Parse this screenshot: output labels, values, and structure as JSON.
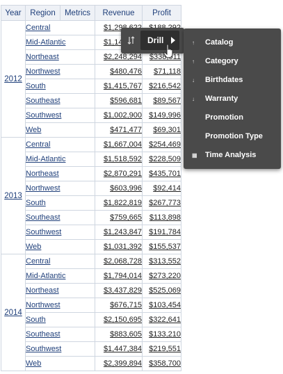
{
  "headers": {
    "year": "Year",
    "region": "Region",
    "metrics": "Metrics",
    "revenue": "Revenue",
    "profit": "Profit"
  },
  "groups": [
    {
      "year": "2012",
      "rows": [
        {
          "region": "Central",
          "revenue": "$1,298,622",
          "profit": "$188,292"
        },
        {
          "region": "Mid-Atlantic",
          "revenue": "$1,147,283",
          "profit": "$174,215"
        },
        {
          "region": "Northeast",
          "revenue": "$2,248,294",
          "profit": "$338,011"
        },
        {
          "region": "Northwest",
          "revenue": "$480,476",
          "profit": "$71,118"
        },
        {
          "region": "South",
          "revenue": "$1,415,767",
          "profit": "$216,542"
        },
        {
          "region": "Southeast",
          "revenue": "$596,681",
          "profit": "$89,567"
        },
        {
          "region": "Southwest",
          "revenue": "$1,002,900",
          "profit": "$149,996"
        },
        {
          "region": "Web",
          "revenue": "$471,477",
          "profit": "$69,301"
        }
      ]
    },
    {
      "year": "2013",
      "rows": [
        {
          "region": "Central",
          "revenue": "$1,667,004",
          "profit": "$254,469"
        },
        {
          "region": "Mid-Atlantic",
          "revenue": "$1,518,592",
          "profit": "$228,509"
        },
        {
          "region": "Northeast",
          "revenue": "$2,870,291",
          "profit": "$435,701"
        },
        {
          "region": "Northwest",
          "revenue": "$603,996",
          "profit": "$92,414"
        },
        {
          "region": "South",
          "revenue": "$1,822,819",
          "profit": "$267,773"
        },
        {
          "region": "Southeast",
          "revenue": "$759,665",
          "profit": "$113,898"
        },
        {
          "region": "Southwest",
          "revenue": "$1,243,847",
          "profit": "$191,784"
        },
        {
          "region": "Web",
          "revenue": "$1,031,392",
          "profit": "$155,537"
        }
      ]
    },
    {
      "year": "2014",
      "rows": [
        {
          "region": "Central",
          "revenue": "$2,068,728",
          "profit": "$313,552"
        },
        {
          "region": "Mid-Atlantic",
          "revenue": "$1,794,014",
          "profit": "$273,220"
        },
        {
          "region": "Northeast",
          "revenue": "$3,437,829",
          "profit": "$525,069"
        },
        {
          "region": "Northwest",
          "revenue": "$676,715",
          "profit": "$103,454"
        },
        {
          "region": "South",
          "revenue": "$2,150,695",
          "profit": "$322,641"
        },
        {
          "region": "Southeast",
          "revenue": "$883,605",
          "profit": "$133,210"
        },
        {
          "region": "Southwest",
          "revenue": "$1,447,384",
          "profit": "$219,551"
        },
        {
          "region": "Web",
          "revenue": "$2,399,894",
          "profit": "$358,700"
        }
      ]
    }
  ],
  "popup": {
    "drill_label": "Drill"
  },
  "submenu": [
    {
      "label": "Catalog",
      "icon": "up-arrow-icon"
    },
    {
      "label": "Category",
      "icon": "up-arrow-icon"
    },
    {
      "label": "Birthdates",
      "icon": "down-arrow-icon"
    },
    {
      "label": "Warranty",
      "icon": "down-arrow-icon"
    },
    {
      "label": "Promotion",
      "icon": ""
    },
    {
      "label": "Promotion Type",
      "icon": ""
    },
    {
      "label": "Time Analysis",
      "icon": "grid-icon"
    }
  ]
}
